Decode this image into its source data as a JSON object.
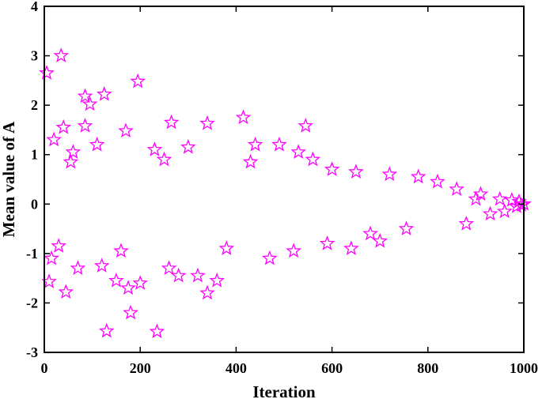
{
  "chart_data": {
    "type": "scatter",
    "title": "",
    "xlabel": "Iteration",
    "ylabel": "Mean value of A",
    "xlim": [
      0,
      1000
    ],
    "ylim": [
      -3,
      4
    ],
    "xticks": [
      "0",
      "200",
      "400",
      "600",
      "800",
      "1000"
    ],
    "yticks": [
      "-3",
      "-2",
      "-1",
      "0",
      "1",
      "2",
      "3",
      "4"
    ],
    "grid": false,
    "legend": "none",
    "marker": "star",
    "marker_color": "#ff00ff",
    "series": [
      {
        "points": [
          [
            5,
            2.65
          ],
          [
            35,
            3.0
          ],
          [
            195,
            2.48
          ],
          [
            85,
            2.18
          ],
          [
            125,
            2.22
          ],
          [
            95,
            2.02
          ],
          [
            130,
            -2.57
          ],
          [
            235,
            -2.58
          ],
          [
            180,
            -2.2
          ],
          [
            175,
            -1.7
          ],
          [
            340,
            -1.8
          ],
          [
            415,
            1.75
          ],
          [
            265,
            1.65
          ],
          [
            545,
            1.58
          ],
          [
            340,
            1.63
          ],
          [
            40,
            1.55
          ],
          [
            85,
            1.58
          ],
          [
            170,
            1.48
          ],
          [
            45,
            -1.78
          ],
          [
            10,
            -1.57
          ],
          [
            150,
            -1.55
          ],
          [
            200,
            -1.6
          ],
          [
            320,
            -1.45
          ],
          [
            20,
            1.3
          ],
          [
            60,
            1.05
          ],
          [
            110,
            1.2
          ],
          [
            230,
            1.1
          ],
          [
            300,
            1.15
          ],
          [
            440,
            1.2
          ],
          [
            490,
            1.2
          ],
          [
            530,
            1.05
          ],
          [
            15,
            -1.1
          ],
          [
            70,
            -1.3
          ],
          [
            120,
            -1.25
          ],
          [
            260,
            -1.3
          ],
          [
            360,
            -1.55
          ],
          [
            280,
            -1.45
          ],
          [
            470,
            -1.1
          ],
          [
            520,
            -0.95
          ],
          [
            640,
            -0.9
          ],
          [
            700,
            -0.75
          ],
          [
            755,
            -0.5
          ],
          [
            780,
            0.55
          ],
          [
            820,
            0.45
          ],
          [
            860,
            0.3
          ],
          [
            880,
            -0.4
          ],
          [
            910,
            0.2
          ],
          [
            930,
            -0.2
          ],
          [
            950,
            0.1
          ],
          [
            960,
            -0.15
          ],
          [
            975,
            0.08
          ],
          [
            985,
            -0.05
          ],
          [
            990,
            0.05
          ],
          [
            995,
            -0.02
          ],
          [
            1000,
            0.0
          ],
          [
            900,
            0.1
          ],
          [
            600,
            0.7
          ],
          [
            650,
            0.65
          ],
          [
            680,
            -0.6
          ],
          [
            720,
            0.6
          ],
          [
            560,
            0.9
          ],
          [
            590,
            -0.8
          ],
          [
            430,
            0.85
          ],
          [
            380,
            -0.9
          ],
          [
            250,
            0.9
          ],
          [
            160,
            -0.95
          ],
          [
            55,
            0.85
          ],
          [
            30,
            -0.85
          ]
        ]
      }
    ]
  }
}
